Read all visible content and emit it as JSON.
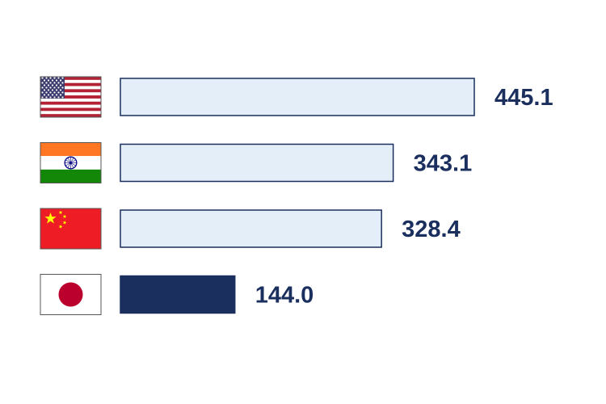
{
  "chart_data": {
    "type": "bar",
    "orientation": "horizontal",
    "categories": [
      "United States",
      "India",
      "China",
      "Japan"
    ],
    "category_icons": [
      "flag-usa-icon",
      "flag-india-icon",
      "flag-china-icon",
      "flag-japan-icon"
    ],
    "values": [
      445.1,
      343.1,
      328.4,
      144.0
    ],
    "value_labels": [
      "445.1",
      "343.1",
      "328.4",
      "144.0"
    ],
    "highlighted_index": 3,
    "title": "",
    "xlabel": "",
    "ylabel": "",
    "xlim": [
      0,
      445.1
    ],
    "grid": false,
    "legend": "none"
  },
  "colors": {
    "bar_fill": "#e4eef9",
    "bar_stroke": "#1b2f5e",
    "highlight_fill": "#1b2f5e",
    "label_color": "#1b2f5e"
  }
}
